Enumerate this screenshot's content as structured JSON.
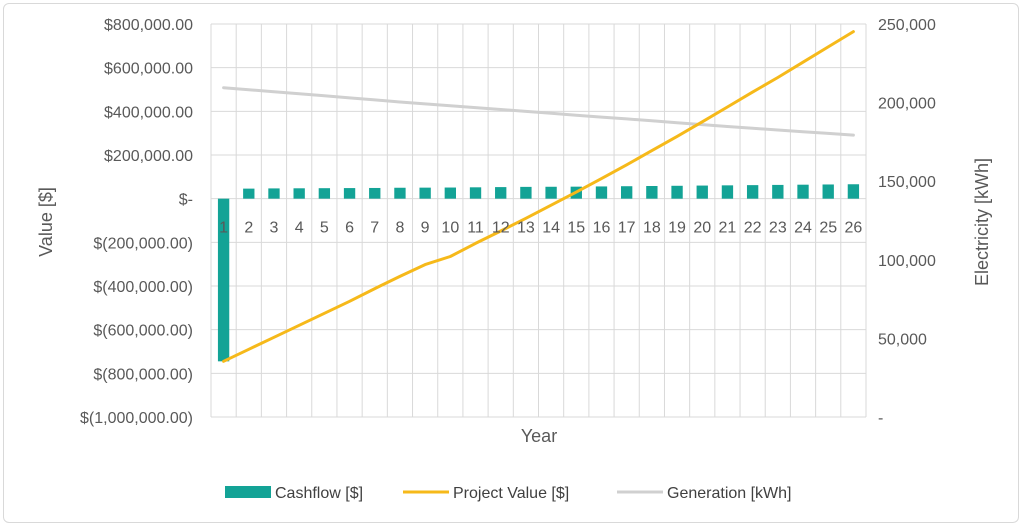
{
  "chart_data": {
    "type": "bar",
    "x": [
      "1",
      "2",
      "3",
      "4",
      "5",
      "6",
      "7",
      "8",
      "9",
      "10",
      "11",
      "12",
      "13",
      "14",
      "15",
      "16",
      "17",
      "18",
      "19",
      "20",
      "21",
      "22",
      "23",
      "24",
      "25",
      "26"
    ],
    "xlabel": "Year",
    "ylabel": "Value [$]",
    "y2label": "Electricity [kWh]",
    "ylim": [
      -1000000,
      800000
    ],
    "y2lim": [
      0,
      250000
    ],
    "yticks": [
      "$800,000.00",
      "$600,000.00",
      "$400,000.00",
      "$200,000.00",
      "$-",
      "$(200,000.00)",
      "$(400,000.00)",
      "$(600,000.00)",
      "$(800,000.00)",
      "$(1,000,000.00)"
    ],
    "y2ticks": [
      "250,000",
      "200,000",
      "150,000",
      "100,000",
      "50,000",
      "-"
    ],
    "grid": true,
    "legend": "bottom",
    "series": [
      {
        "name": "Cashflow [$]",
        "type": "bar",
        "axis": "left",
        "color": "#13a396",
        "values": [
          -745000,
          46000,
          47000,
          47500,
          48000,
          48500,
          49000,
          50000,
          50500,
          51000,
          52000,
          53000,
          54000,
          54500,
          55000,
          56000,
          57000,
          58000,
          59000,
          60000,
          61000,
          62000,
          63000,
          64000,
          65000,
          66000
        ]
      },
      {
        "name": "Project Value [$]",
        "type": "line",
        "axis": "left",
        "color": "#f6b91a",
        "values": [
          -745000,
          -690000,
          -635000,
          -580000,
          -525000,
          -470000,
          -412000,
          -356000,
          -302000,
          -265000,
          -205000,
          -148000,
          -90000,
          -30000,
          30000,
          92000,
          155000,
          220000,
          285000,
          352000,
          420000,
          488000,
          555000,
          625000,
          695000,
          765000
        ]
      },
      {
        "name": "Generation [kWh]",
        "type": "line",
        "axis": "right",
        "color": "#d0d0d0",
        "values": [
          209500,
          208200,
          206900,
          205600,
          204300,
          203000,
          201700,
          200400,
          199200,
          198000,
          196800,
          195600,
          194400,
          193200,
          192000,
          190800,
          189600,
          188400,
          187200,
          186000,
          184800,
          183700,
          182600,
          181500,
          180400,
          179300
        ]
      }
    ]
  }
}
